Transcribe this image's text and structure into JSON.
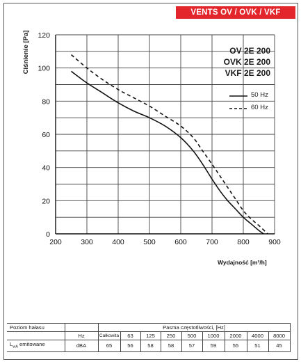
{
  "brand": {
    "title": "VENTS OV / OVK / VKF",
    "color": "#e3262b"
  },
  "models": [
    "OV 2E 200",
    "OVK 2E 200",
    "VKF 2E 200"
  ],
  "chart_data": {
    "type": "line",
    "title": "",
    "xlabel": "Wydajność [m³/h]",
    "ylabel": "Ciśnienie [Pa]",
    "xlim": [
      200,
      900
    ],
    "ylim": [
      0,
      120
    ],
    "xticks": [
      "200",
      "300",
      "400",
      "500",
      "600",
      "700",
      "800",
      "900"
    ],
    "yticks": [
      "0",
      "20",
      "40",
      "60",
      "80",
      "100",
      "120"
    ],
    "grid": true,
    "legend_position": "right",
    "series": [
      {
        "name": "50 Hz",
        "style": "solid",
        "points": [
          [
            250,
            98
          ],
          [
            300,
            91
          ],
          [
            350,
            85
          ],
          [
            400,
            79
          ],
          [
            450,
            74
          ],
          [
            500,
            70
          ],
          [
            550,
            65
          ],
          [
            600,
            58
          ],
          [
            640,
            50
          ],
          [
            670,
            42
          ],
          [
            700,
            33
          ],
          [
            725,
            26
          ],
          [
            750,
            20
          ],
          [
            775,
            15
          ],
          [
            800,
            10
          ],
          [
            825,
            6
          ],
          [
            850,
            2
          ],
          [
            865,
            0
          ]
        ]
      },
      {
        "name": "60 Hz",
        "style": "dashed",
        "points": [
          [
            250,
            108
          ],
          [
            300,
            100
          ],
          [
            350,
            93
          ],
          [
            400,
            87
          ],
          [
            450,
            82
          ],
          [
            500,
            77
          ],
          [
            550,
            71
          ],
          [
            600,
            65
          ],
          [
            640,
            58
          ],
          [
            670,
            50
          ],
          [
            700,
            42
          ],
          [
            725,
            35
          ],
          [
            750,
            28
          ],
          [
            775,
            21
          ],
          [
            800,
            14
          ],
          [
            825,
            9
          ],
          [
            850,
            5
          ],
          [
            878,
            0
          ]
        ]
      }
    ]
  },
  "noise_table": {
    "title": "Poziom hałasu",
    "band_header": "Pasma częstotliwości, [Hz]",
    "unit_header": "Hz",
    "row_label": "emitowane",
    "row_label_prefix": "L",
    "row_label_sub": "wA",
    "row_unit": "dBA",
    "columns": [
      "Całkowita",
      "63",
      "125",
      "250",
      "500",
      "1000",
      "2000",
      "4000",
      "8000"
    ],
    "values": [
      "65",
      "56",
      "58",
      "58",
      "57",
      "59",
      "55",
      "51",
      "45"
    ]
  }
}
